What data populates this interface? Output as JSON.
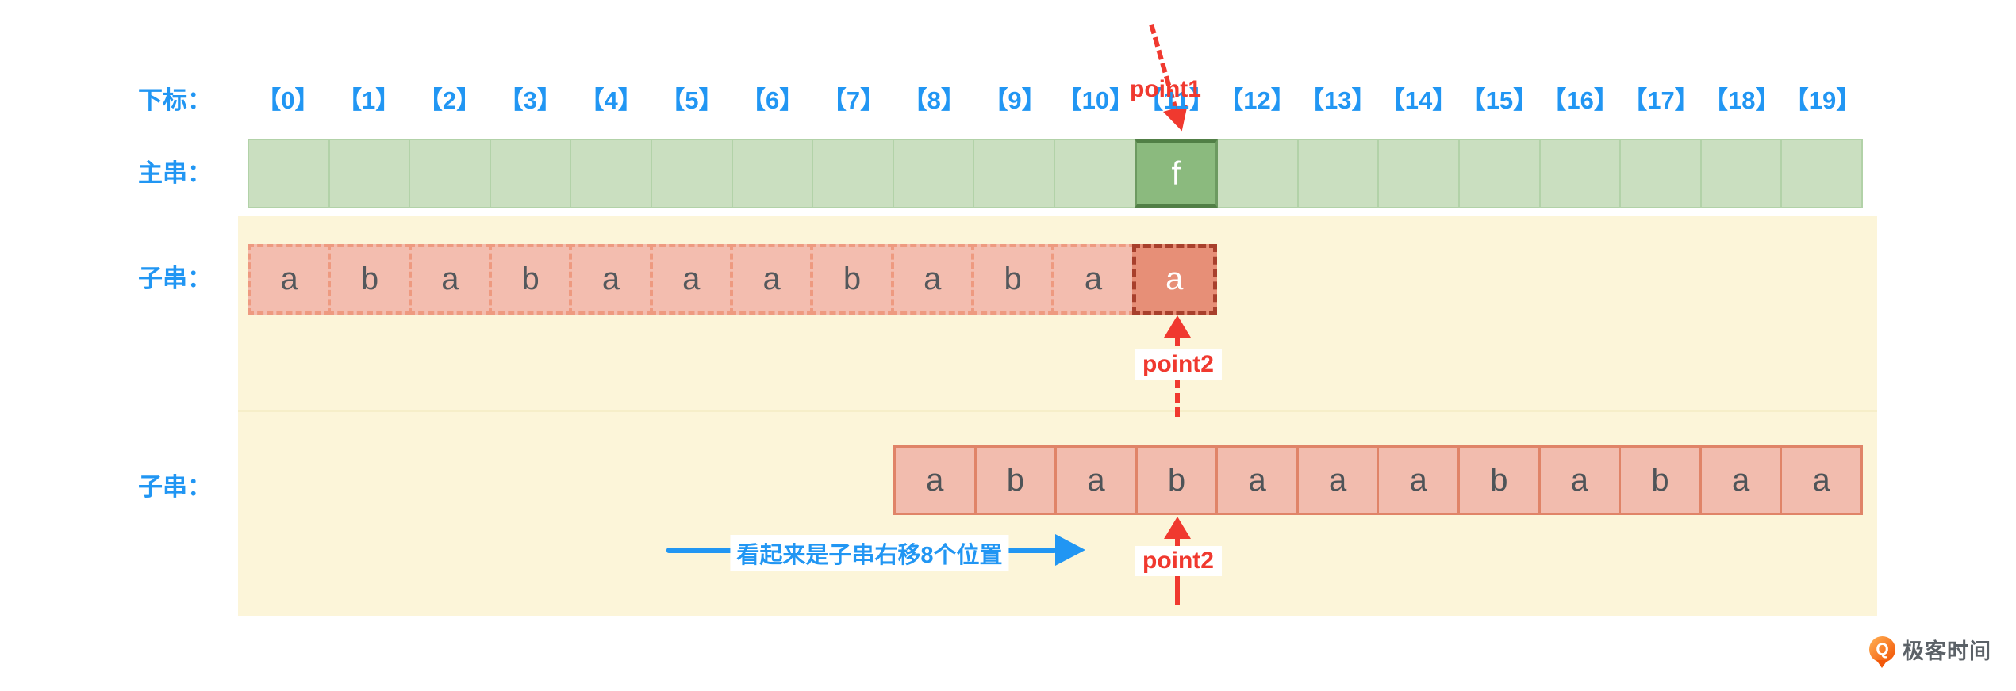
{
  "labels": {
    "index_row": "下标：",
    "main_row": "主串：",
    "sub_row1": "子串：",
    "sub_row2": "子串："
  },
  "indices": [
    "【0】",
    "【1】",
    "【2】",
    "【3】",
    "【4】",
    "【5】",
    "【6】",
    "【7】",
    "【8】",
    "【9】",
    "【10】",
    "【11】",
    "【12】",
    "【13】",
    "【14】",
    "【15】",
    "【16】",
    "【17】",
    "【18】",
    "【19】"
  ],
  "main_string": {
    "cell_count": 20,
    "highlight_index": 11,
    "highlight_char": "f"
  },
  "substring1": {
    "start_index": 0,
    "chars": [
      "a",
      "b",
      "a",
      "b",
      "a",
      "a",
      "a",
      "b",
      "a",
      "b",
      "a",
      "a"
    ],
    "highlight_index": 11
  },
  "substring2": {
    "start_index": 8,
    "chars": [
      "a",
      "b",
      "a",
      "b",
      "a",
      "a",
      "a",
      "b",
      "a",
      "b",
      "a",
      "a"
    ],
    "pointer_index": 11
  },
  "annotations": {
    "point1": "point1",
    "point2_top": "point2",
    "point2_bottom": "point2",
    "shift_note": "看起来是子串右移8个位置"
  },
  "logo": {
    "icon_letter": "Q",
    "text": "极客时间"
  },
  "colors": {
    "accent_blue": "#2196f3",
    "pointer_red": "#f0392f",
    "green_cell": "#cadfc0",
    "green_highlight": "#8bba7e",
    "green_highlight_border": "#517f46",
    "pink_fill": "#f3bdaf",
    "pink_dashed_border": "#ee9a80",
    "pink_highlight_fill": "#e78f77",
    "pink_highlight_border": "#a8402c",
    "pink2_fill": "#f2bcae",
    "pink2_border": "#e08468",
    "panel_yellow": "#fcf5d9",
    "letter_gray": "#54585c",
    "logo_orange": "#f2590a"
  }
}
